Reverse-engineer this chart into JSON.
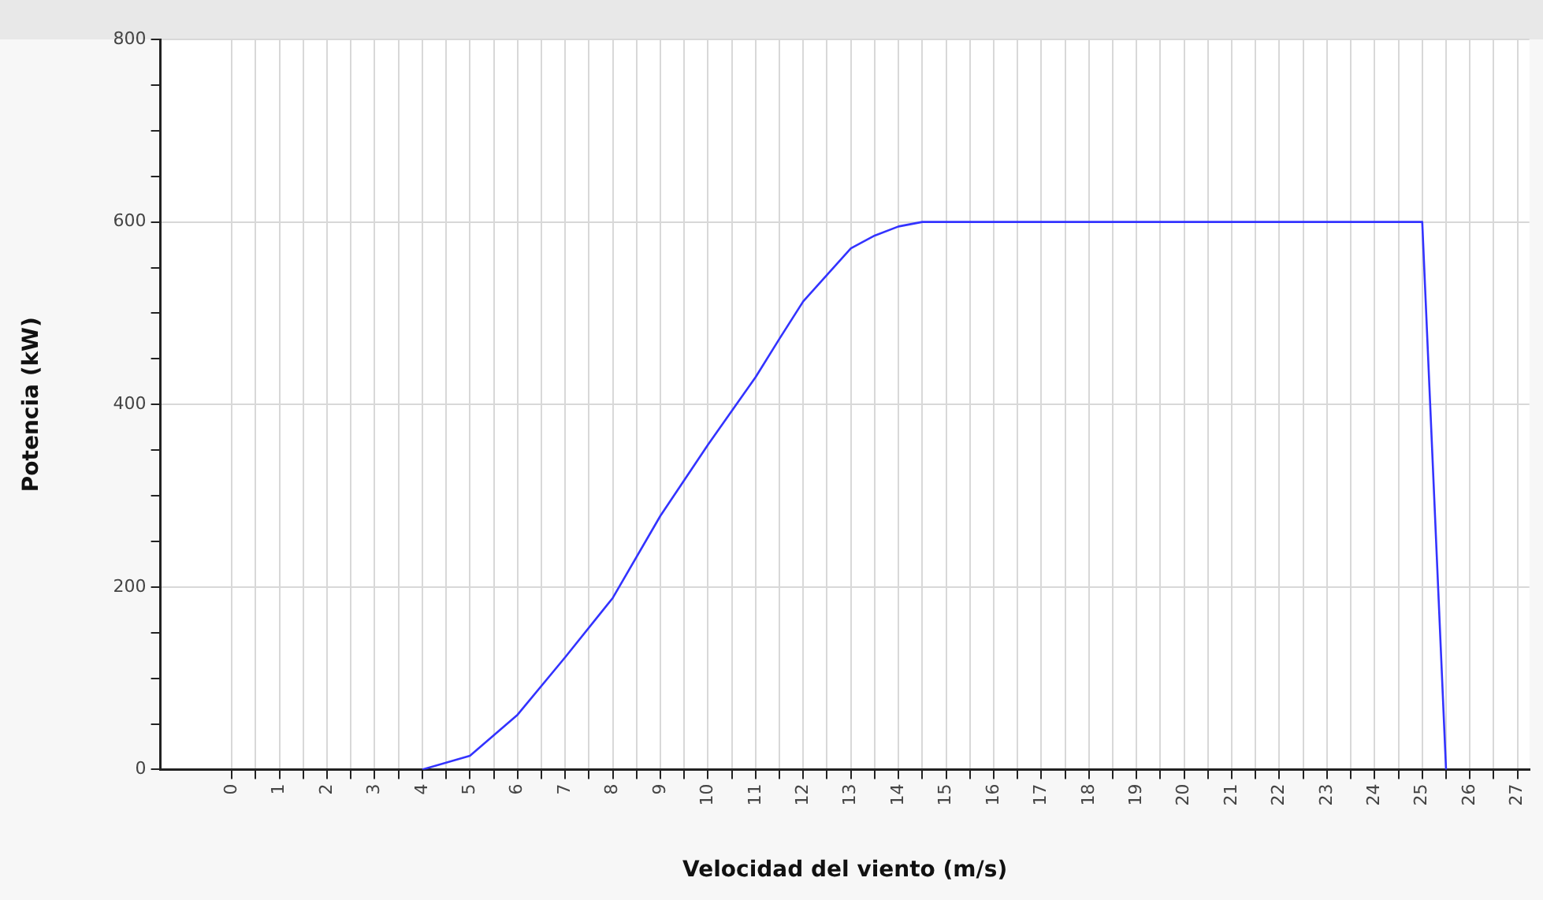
{
  "chart_data": {
    "type": "line",
    "xlabel": "Velocidad del viento (m/s)",
    "ylabel": "Potencia (kW)",
    "x": [
      4,
      5,
      6,
      7,
      8,
      9,
      10,
      11,
      11.5,
      12,
      13,
      13.5,
      14,
      14.5,
      25,
      25.5
    ],
    "series": [
      {
        "color": "#3333ff",
        "values": [
          0,
          15,
          60,
          123,
          188,
          278,
          356,
          430,
          472,
          513,
          571,
          585,
          595,
          600,
          600,
          0
        ]
      }
    ],
    "xlim": [
      -1.5,
      27.25
    ],
    "xticks": [
      0,
      {
        "value": 0.5,
        "label": null
      },
      1,
      {
        "value": 1.5,
        "label": null
      },
      2,
      {
        "value": 2.5,
        "label": null
      },
      3,
      {
        "value": 3.5,
        "label": null
      },
      4,
      {
        "value": 4.5,
        "label": null
      },
      5,
      {
        "value": 5.5,
        "label": null
      },
      6,
      {
        "value": 6.5,
        "label": null
      },
      7,
      {
        "value": 7.5,
        "label": null
      },
      8,
      {
        "value": 8.5,
        "label": null
      },
      9,
      {
        "value": 9.5,
        "label": null
      },
      10,
      {
        "value": 10.5,
        "label": null
      },
      11,
      {
        "value": 11.5,
        "label": null
      },
      12,
      {
        "value": 12.5,
        "label": null
      },
      13,
      {
        "value": 13.5,
        "label": null
      },
      14,
      {
        "value": 14.5,
        "label": null
      },
      15,
      {
        "value": 15.5,
        "label": null
      },
      16,
      {
        "value": 16.5,
        "label": null
      },
      17,
      {
        "value": 17.5,
        "label": null
      },
      18,
      {
        "value": 18.5,
        "label": null
      },
      19,
      {
        "value": 19.5,
        "label": null
      },
      20,
      {
        "value": 20.5,
        "label": null
      },
      21,
      {
        "value": 21.5,
        "label": null
      },
      22,
      {
        "value": 22.5,
        "label": null
      },
      23,
      {
        "value": 23.5,
        "label": null
      },
      24,
      {
        "value": 24.5,
        "label": null
      },
      25,
      {
        "value": 25.5,
        "label": null
      },
      26,
      {
        "value": 26.5,
        "label": null
      },
      27
    ],
    "ylim": [
      0,
      800
    ],
    "yticks": [
      0,
      {
        "value": 50,
        "label": null
      },
      {
        "value": 100,
        "label": null
      },
      {
        "value": 150,
        "label": null
      },
      200,
      {
        "value": 250,
        "label": null
      },
      {
        "value": 300,
        "label": null
      },
      {
        "value": 350,
        "label": null
      },
      400,
      {
        "value": 450,
        "label": null
      },
      {
        "value": 500,
        "label": null
      },
      {
        "value": 550,
        "label": null
      },
      600,
      {
        "value": 650,
        "label": null
      },
      {
        "value": 700,
        "label": null
      },
      {
        "value": 750,
        "label": null
      },
      800
    ],
    "grid": true,
    "marker": "none",
    "line_style": "solid",
    "legend": false
  }
}
